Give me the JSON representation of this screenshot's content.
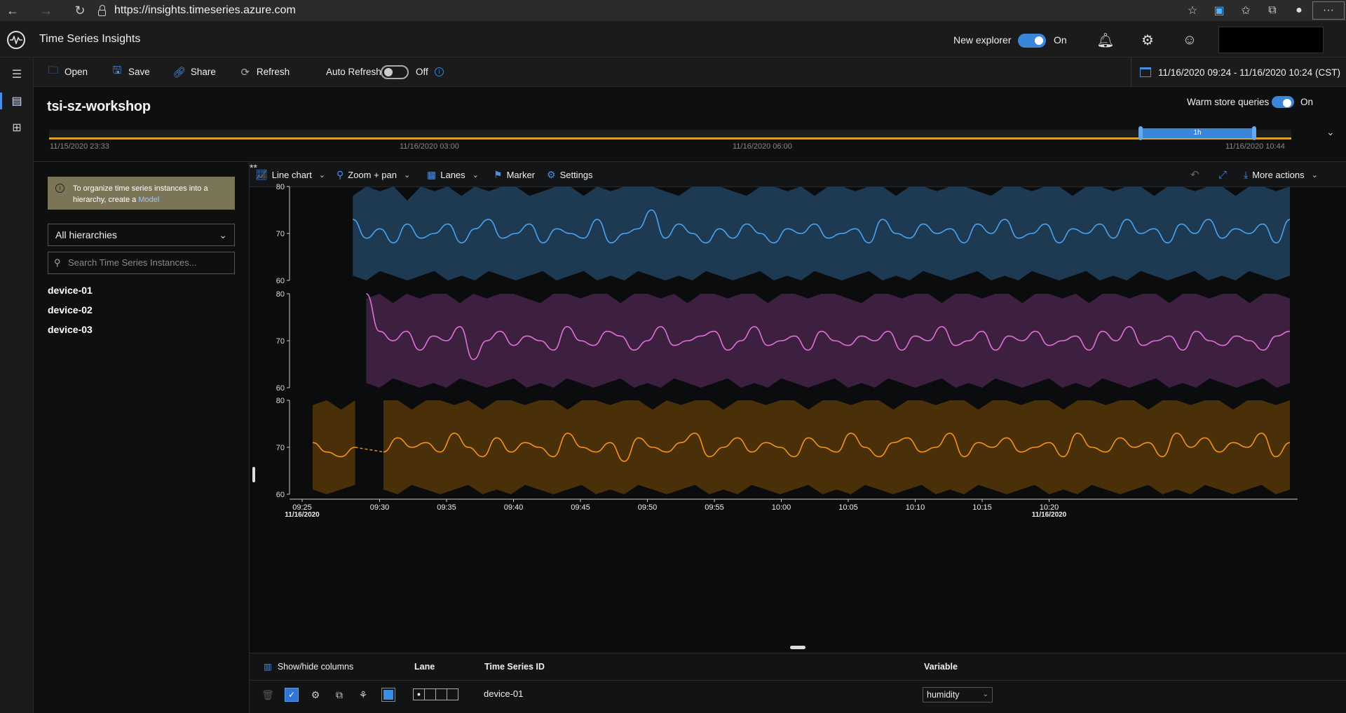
{
  "browser": {
    "url": "https://insights.timeseries.azure.com"
  },
  "app": {
    "title": "Time Series Insights",
    "new_explorer_label": "New explorer",
    "new_explorer_state": "On"
  },
  "toolbar": {
    "open": "Open",
    "save": "Save",
    "share": "Share",
    "refresh": "Refresh",
    "auto_refresh_label": "Auto Refresh",
    "auto_refresh_state": "Off",
    "date_range": "11/16/2020 09:24 - 11/16/2020 10:24 (CST)"
  },
  "environment": {
    "name": "tsi-sz-workshop",
    "warm_store_label": "Warm store queries",
    "warm_store_state": "On"
  },
  "brush": {
    "selection_label": "1h",
    "ticks": [
      "11/15/2020 23:33",
      "11/16/2020 03:00",
      "11/16/2020 06:00",
      "11/16/2020 10:44"
    ]
  },
  "left_panel": {
    "notice_text": "To organize time series instances into a hierarchy, create a ",
    "notice_link": "Model",
    "hierarchy_select": "All hierarchies",
    "search_placeholder": "Search Time Series Instances...",
    "instances": [
      "device-01",
      "device-02",
      "device-03"
    ]
  },
  "chart_toolbar": {
    "line_chart": "Line chart",
    "zoom_pan": "Zoom + pan",
    "lanes": "Lanes",
    "marker": "Marker",
    "settings": "Settings",
    "more_actions": "More actions"
  },
  "chart_data": {
    "type": "line",
    "x_tick_labels": [
      "09:25",
      "09:30",
      "09:35",
      "09:40",
      "09:45",
      "09:50",
      "09:55",
      "10:00",
      "10:05",
      "10:10",
      "10:15",
      "10:20"
    ],
    "x_date_labels": [
      "11/16/2020",
      "11/16/2020"
    ],
    "lanes": [
      {
        "id": "device-01",
        "color": "#4aa3f0",
        "band_color": "#1d3a52",
        "y_range": [
          60,
          80
        ],
        "y_ticks": [
          80,
          70,
          60
        ],
        "start_time": "09:28",
        "avg": [
          73,
          69,
          71,
          68,
          72,
          69,
          70,
          72,
          68,
          71,
          73,
          69,
          70,
          72,
          68,
          71,
          70,
          69,
          73,
          68,
          70,
          71,
          75,
          69,
          72,
          70,
          68,
          71,
          69,
          72,
          70,
          68,
          71,
          70,
          72,
          69,
          70,
          71,
          68,
          73,
          70,
          69,
          72,
          70,
          71,
          68,
          72,
          70,
          73,
          69,
          70,
          72,
          68,
          71,
          70,
          72,
          69,
          73,
          70,
          71,
          68,
          72,
          70,
          73,
          69,
          71,
          70,
          72,
          68,
          73
        ],
        "max": [
          78,
          80,
          79,
          80,
          77,
          80,
          79,
          80,
          78,
          80,
          79,
          80,
          80,
          78,
          79,
          80,
          80,
          78,
          80,
          79,
          80,
          80,
          80,
          79,
          78,
          80,
          80,
          80,
          79,
          78,
          80,
          80,
          79,
          80,
          78,
          80,
          80,
          79,
          80,
          80,
          78,
          80,
          80,
          79,
          80,
          80,
          79,
          78,
          80,
          80,
          79,
          80,
          80,
          78,
          80,
          80,
          79,
          80,
          80,
          78,
          80,
          80,
          79,
          80,
          80,
          78,
          80,
          80,
          79,
          80
        ],
        "min": [
          61,
          60,
          62,
          61,
          60,
          61,
          62,
          60,
          61,
          60,
          62,
          61,
          60,
          61,
          62,
          60,
          61,
          62,
          60,
          61,
          60,
          62,
          61,
          60,
          61,
          60,
          62,
          61,
          60,
          61,
          62,
          60,
          61,
          60,
          62,
          61,
          60,
          61,
          62,
          60,
          61,
          60,
          62,
          61,
          60,
          61,
          62,
          60,
          61,
          60,
          62,
          61,
          60,
          61,
          62,
          60,
          61,
          60,
          62,
          61,
          60,
          61,
          62,
          60,
          61,
          60,
          62,
          61,
          60,
          61
        ]
      },
      {
        "id": "device-02",
        "color": "#e070d8",
        "band_color": "#3d2040",
        "y_range": [
          60,
          80
        ],
        "y_ticks": [
          80,
          70,
          60
        ],
        "start_time": "09:29",
        "avg": [
          80,
          72,
          70,
          72,
          68,
          71,
          70,
          73,
          66,
          70,
          72,
          69,
          71,
          70,
          68,
          73,
          70,
          69,
          72,
          71,
          68,
          70,
          73,
          69,
          70,
          71,
          72,
          68,
          70,
          73,
          69,
          70,
          71,
          68,
          72,
          70,
          69,
          71,
          70,
          72,
          68,
          71,
          70,
          73,
          69,
          70,
          72,
          68,
          71,
          70,
          72,
          69,
          70,
          71,
          68,
          72,
          70,
          73,
          69,
          70,
          71,
          68,
          72,
          70,
          69,
          71,
          70,
          68,
          71,
          72
        ],
        "max": [
          79,
          80,
          78,
          80,
          79,
          80,
          80,
          78,
          80,
          79,
          80,
          80,
          79,
          78,
          80,
          80,
          79,
          80,
          80,
          78,
          80,
          80,
          79,
          80,
          78,
          80,
          80,
          79,
          80,
          80,
          78,
          80,
          80,
          79,
          80,
          80,
          79,
          78,
          80,
          80,
          79,
          80,
          80,
          78,
          80,
          80,
          79,
          80,
          80,
          78,
          80,
          80,
          79,
          80,
          78,
          80,
          80,
          79,
          80,
          80,
          78,
          80,
          80,
          79,
          80,
          80,
          78,
          80,
          80,
          79
        ],
        "min": [
          61,
          60,
          62,
          61,
          60,
          61,
          60,
          62,
          61,
          60,
          61,
          62,
          60,
          61,
          60,
          62,
          61,
          60,
          61,
          62,
          60,
          61,
          60,
          62,
          61,
          60,
          61,
          62,
          60,
          61,
          60,
          62,
          61,
          60,
          61,
          62,
          60,
          61,
          60,
          62,
          61,
          60,
          61,
          62,
          60,
          61,
          60,
          62,
          61,
          60,
          61,
          62,
          60,
          61,
          60,
          62,
          61,
          60,
          61,
          62,
          60,
          61,
          60,
          62,
          61,
          60,
          61,
          62,
          60,
          61
        ]
      },
      {
        "id": "device-03",
        "color": "#f5921e",
        "band_color": "#4a3008",
        "y_range": [
          60,
          80
        ],
        "y_ticks": [
          80,
          70,
          60
        ],
        "start_time": "09:25",
        "gap": [
          "09:29",
          "09:30"
        ],
        "avg": [
          71,
          69,
          68,
          70,
          67,
          69,
          72,
          70,
          71,
          69,
          73,
          70,
          68,
          72,
          69,
          71,
          70,
          68,
          73,
          70,
          69,
          71,
          67,
          72,
          70,
          69,
          71,
          73,
          68,
          70,
          72,
          69,
          71,
          70,
          68,
          72,
          70,
          69,
          73,
          70,
          68,
          71,
          72,
          69,
          70,
          73,
          68,
          71,
          70,
          72,
          69,
          70,
          71,
          68,
          73,
          70,
          69,
          72,
          70,
          71,
          68,
          73,
          70,
          72,
          69,
          71,
          70,
          73,
          68,
          71
        ],
        "max": [
          79,
          80,
          78,
          80,
          79,
          80,
          80,
          78,
          80,
          80,
          79,
          80,
          78,
          80,
          80,
          79,
          80,
          80,
          78,
          80,
          80,
          79,
          80,
          80,
          78,
          80,
          79,
          80,
          80,
          78,
          80,
          80,
          79,
          80,
          80,
          78,
          80,
          80,
          79,
          80,
          80,
          78,
          80,
          80,
          79,
          80,
          80,
          78,
          80,
          80,
          79,
          80,
          80,
          78,
          80,
          80,
          79,
          80,
          80,
          78,
          80,
          80,
          79,
          80,
          80,
          78,
          80,
          80,
          79,
          80
        ],
        "min": [
          61,
          60,
          61,
          62,
          60,
          61,
          60,
          62,
          61,
          60,
          61,
          62,
          60,
          61,
          60,
          62,
          61,
          60,
          61,
          62,
          60,
          61,
          60,
          62,
          61,
          60,
          61,
          62,
          60,
          61,
          60,
          62,
          61,
          60,
          61,
          62,
          60,
          61,
          60,
          62,
          61,
          60,
          61,
          62,
          60,
          61,
          60,
          62,
          61,
          60,
          61,
          62,
          60,
          61,
          60,
          62,
          61,
          60,
          61,
          62,
          60,
          61,
          60,
          62,
          61,
          60,
          61,
          62,
          60,
          61
        ]
      }
    ]
  },
  "grid": {
    "show_hide_columns": "Show/hide columns",
    "col_lane": "Lane",
    "col_tsid": "Time Series ID",
    "col_variable": "Variable",
    "rows": [
      {
        "tsid": "device-01",
        "variable": "humidity",
        "color": "#3a8ee6"
      }
    ]
  }
}
